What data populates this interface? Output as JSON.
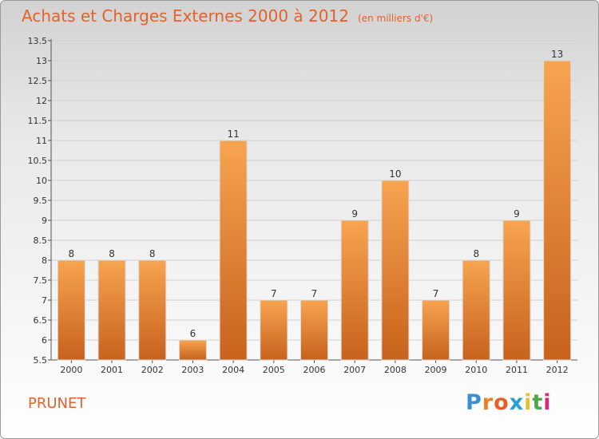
{
  "header": {
    "title": "Achats et Charges Externes 2000 à 2012",
    "unit": "(en milliers d'€)"
  },
  "footer": {
    "commune": "PRUNET",
    "logo_text": "Proxiti",
    "logo_colors": [
      "#3a8fd6",
      "#e8812a",
      "#e4622a",
      "#2a9fd6",
      "#e8c02a",
      "#4aa84a",
      "#d62a7a"
    ]
  },
  "colors": {
    "bar_light": "#f7a450",
    "bar_dark": "#c8621c",
    "title": "#e4622a",
    "grid": "#d0d0d0"
  },
  "chart_data": {
    "type": "bar",
    "categories": [
      "2000",
      "2001",
      "2002",
      "2003",
      "2004",
      "2005",
      "2006",
      "2007",
      "2008",
      "2009",
      "2010",
      "2011",
      "2012"
    ],
    "values": [
      8,
      8,
      8,
      6,
      11,
      7,
      7,
      9,
      10,
      7,
      8,
      9,
      13
    ],
    "data_labels": [
      "8",
      "8",
      "8",
      "6",
      "11",
      "7",
      "7",
      "9",
      "10",
      "7",
      "8",
      "9",
      "13"
    ],
    "yticks": [
      "5.5",
      "6",
      "6.5",
      "7",
      "7.5",
      "8",
      "8.5",
      "9",
      "9.5",
      "10",
      "10.5",
      "11",
      "11.5",
      "12",
      "12.5",
      "13",
      "13.5"
    ],
    "ylim": [
      5.5,
      13.5
    ],
    "grid": true,
    "title": "Achats et Charges Externes 2000 à 2012",
    "xlabel": "",
    "ylabel": ""
  }
}
